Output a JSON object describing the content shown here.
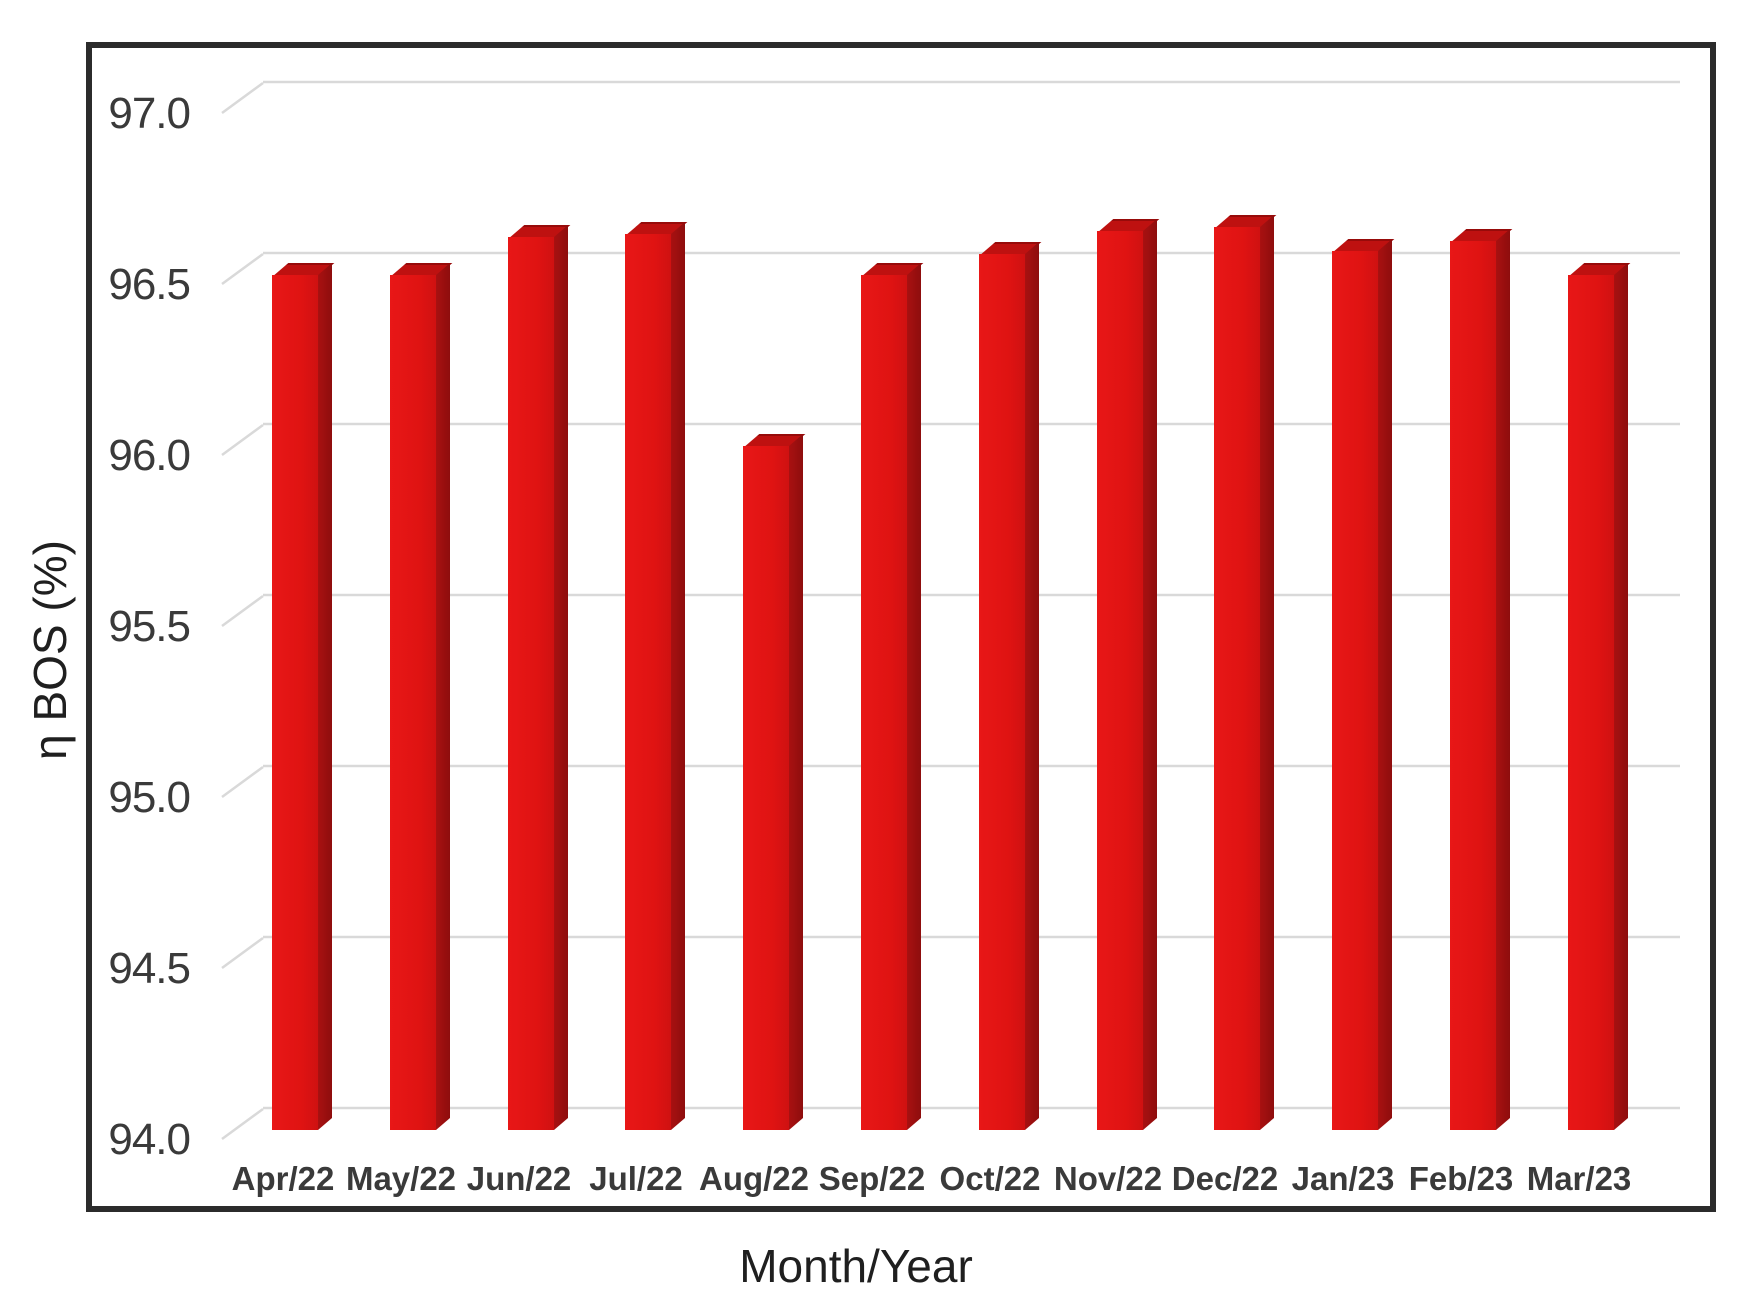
{
  "figure": {
    "y_axis_title": "η BOS (%)",
    "x_axis_title": "Month/Year"
  },
  "chart_data": {
    "type": "bar",
    "title": "",
    "xlabel": "Month/Year",
    "ylabel": "η BOS (%)",
    "categories": [
      "Apr/22",
      "May/22",
      "Jun/22",
      "Jul/22",
      "Aug/22",
      "Sep/22",
      "Oct/22",
      "Nov/22",
      "Dec/22",
      "Jan/23",
      "Feb/23",
      "Mar/23"
    ],
    "values": [
      96.5,
      96.5,
      96.61,
      96.62,
      96.0,
      96.5,
      96.56,
      96.63,
      96.64,
      96.57,
      96.6,
      96.5
    ],
    "ylim": [
      94.0,
      97.0
    ],
    "y_tick_step": 0.5,
    "y_ticks": [
      "97.0",
      "96.5",
      "96.0",
      "95.5",
      "95.0",
      "94.5",
      "94.0"
    ],
    "grid": true,
    "legend": false,
    "style": "3d-column",
    "colors": {
      "bar_front": "#df1312",
      "bar_front_light": "#e81717",
      "bar_front_dark": "#cf1111",
      "bar_top": "#be1110",
      "bar_side": "#8e0d0d",
      "bar_side_light": "#a81111",
      "gridline": "#d9d9d9",
      "border": "#2b2b2b",
      "tick_text": "#3a3a3a"
    }
  }
}
